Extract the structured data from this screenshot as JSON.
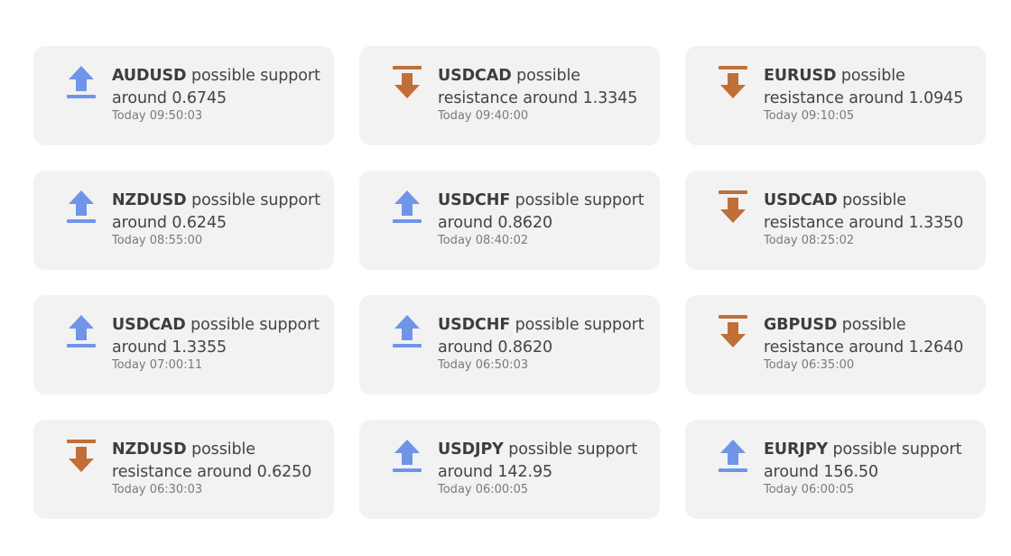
{
  "colors": {
    "support": "#6f95e8",
    "resistance": "#c06f39",
    "card_bg": "#f2f2f2"
  },
  "alerts": [
    {
      "symbol": "AUDUSD",
      "text": " possible support around 0.6745",
      "time": "Today 09:50:03",
      "direction": "support",
      "icon": "arrow-up-icon"
    },
    {
      "symbol": "USDCAD",
      "text": " possible resistance around 1.3345",
      "time": "Today 09:40:00",
      "direction": "resistance",
      "icon": "arrow-down-icon"
    },
    {
      "symbol": "EURUSD",
      "text": " possible resistance around 1.0945",
      "time": "Today 09:10:05",
      "direction": "resistance",
      "icon": "arrow-down-icon"
    },
    {
      "symbol": "NZDUSD",
      "text": " possible support around 0.6245",
      "time": "Today 08:55:00",
      "direction": "support",
      "icon": "arrow-up-icon"
    },
    {
      "symbol": "USDCHF",
      "text": " possible support around 0.8620",
      "time": "Today 08:40:02",
      "direction": "support",
      "icon": "arrow-up-icon"
    },
    {
      "symbol": "USDCAD",
      "text": " possible resistance around 1.3350",
      "time": "Today 08:25:02",
      "direction": "resistance",
      "icon": "arrow-down-icon"
    },
    {
      "symbol": "USDCAD",
      "text": " possible support around 1.3355",
      "time": "Today 07:00:11",
      "direction": "support",
      "icon": "arrow-up-icon"
    },
    {
      "symbol": "USDCHF",
      "text": " possible support around 0.8620",
      "time": "Today 06:50:03",
      "direction": "support",
      "icon": "arrow-up-icon"
    },
    {
      "symbol": "GBPUSD",
      "text": " possible resistance around 1.2640",
      "time": "Today 06:35:00",
      "direction": "resistance",
      "icon": "arrow-down-icon"
    },
    {
      "symbol": "NZDUSD",
      "text": " possible resistance around 0.6250",
      "time": "Today 06:30:03",
      "direction": "resistance",
      "icon": "arrow-down-icon"
    },
    {
      "symbol": "USDJPY",
      "text": " possible support around 142.95",
      "time": "Today 06:00:05",
      "direction": "support",
      "icon": "arrow-up-icon"
    },
    {
      "symbol": "EURJPY",
      "text": " possible support around 156.50",
      "time": "Today 06:00:05",
      "direction": "support",
      "icon": "arrow-up-icon"
    }
  ]
}
